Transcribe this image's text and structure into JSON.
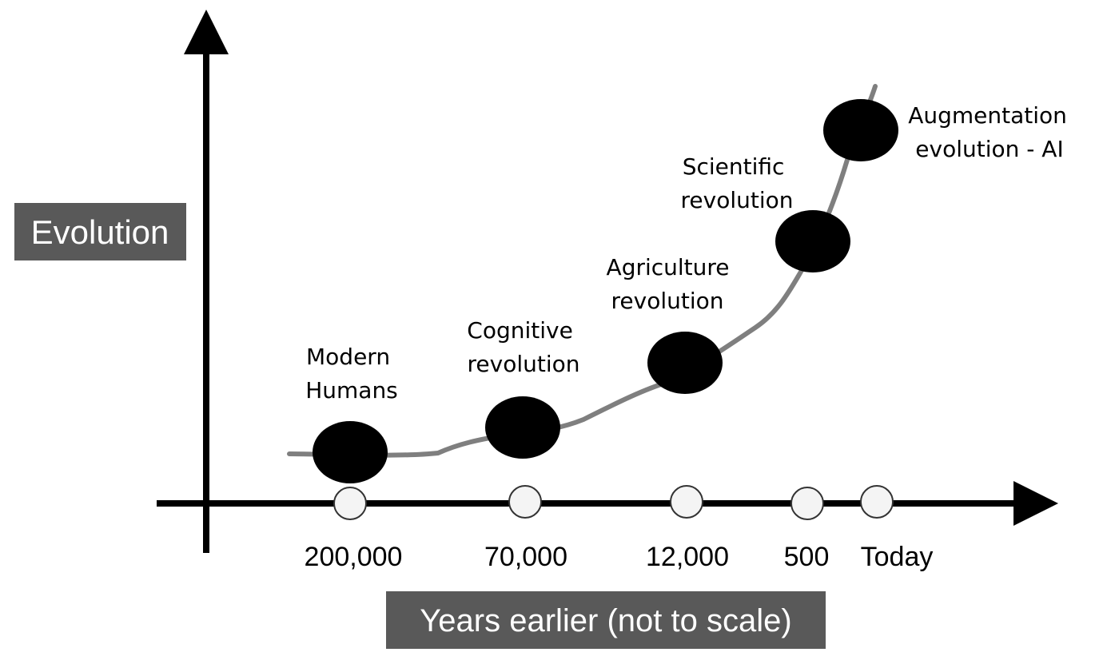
{
  "axis": {
    "y_label": "Evolution",
    "x_label": "Years earlier (not to scale)"
  },
  "ticks": [
    {
      "label": "200,000"
    },
    {
      "label": "70,000"
    },
    {
      "label": "12,000"
    },
    {
      "label": "500"
    },
    {
      "label": "Today"
    }
  ],
  "events": [
    {
      "lines": [
        "Modern",
        "Humans"
      ]
    },
    {
      "lines": [
        "Cognitive",
        "revolution"
      ]
    },
    {
      "lines": [
        "Agriculture",
        "revolution"
      ]
    },
    {
      "lines": [
        "Scientific",
        "revolution"
      ]
    },
    {
      "lines": [
        "Augmentation",
        "evolution - AI"
      ]
    }
  ],
  "colors": {
    "axis": "#000000",
    "curve": "#7f7f7f",
    "event_dot": "#000000",
    "tick_dot": "#f4f4f4",
    "label_box": "#595959"
  }
}
